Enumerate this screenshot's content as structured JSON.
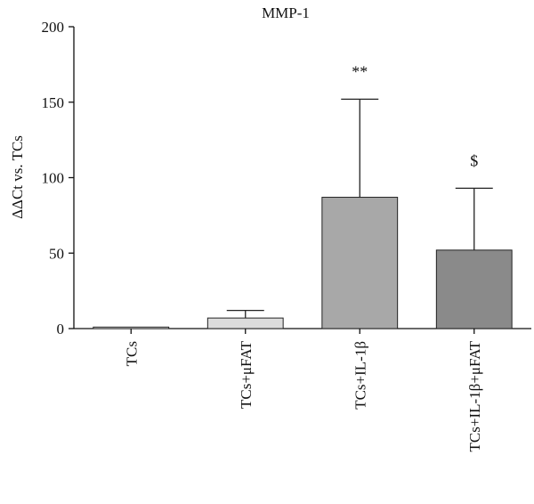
{
  "chart_data": {
    "type": "bar",
    "title": "MMP-1",
    "ylabel": "ΔΔCt vs. TCs",
    "xlabel": "",
    "ylim": [
      0,
      200
    ],
    "yticks": [
      0,
      50,
      100,
      150,
      200
    ],
    "categories": [
      "TCs",
      "TCs+μFAT",
      "TCs+IL-1β",
      "TCs+IL-1β+μFAT"
    ],
    "values": [
      1,
      7,
      87,
      52
    ],
    "error_upper": [
      0,
      5,
      65,
      41
    ],
    "annotations": [
      "",
      "",
      "**",
      "$"
    ],
    "bar_colors": [
      "#f2f2f2",
      "#dcdcdc",
      "#a8a8a8",
      "#8a8a8a"
    ],
    "grid": false,
    "legend": "none"
  }
}
